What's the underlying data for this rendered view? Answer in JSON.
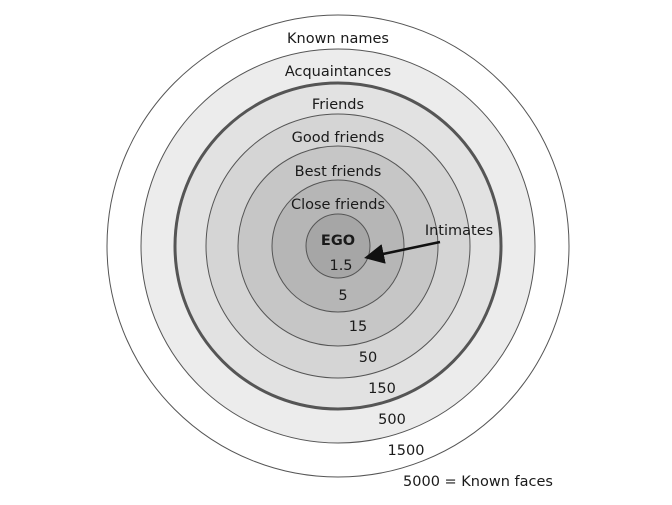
{
  "layers": [
    {
      "label": "Known names",
      "count": "1500",
      "fill": "#ffffff"
    },
    {
      "label": "Acquaintances",
      "count": "500",
      "fill": "#ececec"
    },
    {
      "label": "Friends",
      "count": "150",
      "fill": "#e2e2e2"
    },
    {
      "label": "Good friends",
      "count": "50",
      "fill": "#d5d5d5"
    },
    {
      "label": "Best friends",
      "count": "15",
      "fill": "#c6c6c6"
    },
    {
      "label": "Close friends",
      "count": "5",
      "fill": "#b6b6b6"
    },
    {
      "label": "EGO",
      "count": "1.5",
      "fill": "#a6a6a6"
    }
  ],
  "outer_label": "5000 = Known faces",
  "pointer_label": "Intimates",
  "colors": {
    "stroke": "#555555",
    "thick_stroke": "#555555",
    "text": "#1a1a1a"
  }
}
